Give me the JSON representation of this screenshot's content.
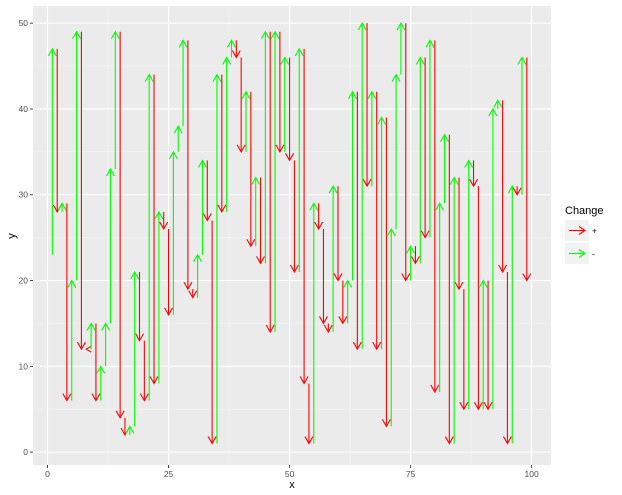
{
  "chart_data": {
    "type": "segment-arrows",
    "title": "",
    "xlabel": "x",
    "ylabel": "y",
    "xlim": [
      -3,
      104
    ],
    "ylim": [
      -1.5,
      52
    ],
    "x_ticks": [
      0,
      25,
      50,
      75,
      100
    ],
    "y_ticks": [
      0,
      10,
      20,
      30,
      40,
      50
    ],
    "grid": true,
    "legend": {
      "title": "Change",
      "position": "right",
      "entries": [
        {
          "label": "+",
          "color": "#ff0000"
        },
        {
          "label": "-",
          "color": "#00ff00"
        }
      ]
    },
    "arrows": [
      {
        "x": 1,
        "y_start": 23,
        "y_end": 47,
        "change": "-"
      },
      {
        "x": 2,
        "y_start": 47,
        "y_end": 28,
        "change": "+"
      },
      {
        "x": 3,
        "y_start": 28,
        "y_end": 29,
        "change": "-"
      },
      {
        "x": 4,
        "y_start": 29,
        "y_end": 6,
        "change": "+"
      },
      {
        "x": 5,
        "y_start": 6,
        "y_end": 20,
        "change": "-"
      },
      {
        "x": 6,
        "y_start": 20,
        "y_end": 49,
        "change": "-"
      },
      {
        "x": 7,
        "y_start": 49,
        "y_end": 12,
        "change": "+"
      },
      {
        "x": 8,
        "y_start": 12,
        "y_end": 12,
        "change": "+"
      },
      {
        "x": 9,
        "y_start": 12,
        "y_end": 15,
        "change": "-"
      },
      {
        "x": 10,
        "y_start": 15,
        "y_end": 6,
        "change": "+"
      },
      {
        "x": 11,
        "y_start": 6,
        "y_end": 10,
        "change": "-"
      },
      {
        "x": 12,
        "y_start": 10,
        "y_end": 15,
        "change": "-"
      },
      {
        "x": 13,
        "y_start": 15,
        "y_end": 33,
        "change": "-"
      },
      {
        "x": 14,
        "y_start": 33,
        "y_end": 49,
        "change": "-"
      },
      {
        "x": 15,
        "y_start": 49,
        "y_end": 4,
        "change": "+"
      },
      {
        "x": 16,
        "y_start": 4,
        "y_end": 2,
        "change": "+"
      },
      {
        "x": 17,
        "y_start": 2,
        "y_end": 3,
        "change": "-"
      },
      {
        "x": 18,
        "y_start": 3,
        "y_end": 21,
        "change": "-"
      },
      {
        "x": 19,
        "y_start": 21,
        "y_end": 13,
        "change": "+"
      },
      {
        "x": 20,
        "y_start": 13,
        "y_end": 6,
        "change": "+"
      },
      {
        "x": 21,
        "y_start": 6,
        "y_end": 44,
        "change": "-"
      },
      {
        "x": 22,
        "y_start": 44,
        "y_end": 8,
        "change": "+"
      },
      {
        "x": 23,
        "y_start": 8,
        "y_end": 28,
        "change": "-"
      },
      {
        "x": 24,
        "y_start": 28,
        "y_end": 26,
        "change": "+"
      },
      {
        "x": 25,
        "y_start": 26,
        "y_end": 16,
        "change": "+"
      },
      {
        "x": 26,
        "y_start": 16,
        "y_end": 35,
        "change": "-"
      },
      {
        "x": 27,
        "y_start": 35,
        "y_end": 38,
        "change": "-"
      },
      {
        "x": 28,
        "y_start": 38,
        "y_end": 48,
        "change": "-"
      },
      {
        "x": 29,
        "y_start": 48,
        "y_end": 19,
        "change": "+"
      },
      {
        "x": 30,
        "y_start": 19,
        "y_end": 18,
        "change": "+"
      },
      {
        "x": 31,
        "y_start": 18,
        "y_end": 23,
        "change": "-"
      },
      {
        "x": 32,
        "y_start": 23,
        "y_end": 34,
        "change": "-"
      },
      {
        "x": 33,
        "y_start": 34,
        "y_end": 27,
        "change": "+"
      },
      {
        "x": 34,
        "y_start": 27,
        "y_end": 1,
        "change": "+"
      },
      {
        "x": 35,
        "y_start": 1,
        "y_end": 44,
        "change": "-"
      },
      {
        "x": 36,
        "y_start": 44,
        "y_end": 28,
        "change": "+"
      },
      {
        "x": 37,
        "y_start": 28,
        "y_end": 46,
        "change": "-"
      },
      {
        "x": 38,
        "y_start": 46,
        "y_end": 48,
        "change": "-"
      },
      {
        "x": 39,
        "y_start": 48,
        "y_end": 46,
        "change": "+"
      },
      {
        "x": 40,
        "y_start": 46,
        "y_end": 35,
        "change": "+"
      },
      {
        "x": 41,
        "y_start": 35,
        "y_end": 42,
        "change": "-"
      },
      {
        "x": 42,
        "y_start": 42,
        "y_end": 24,
        "change": "+"
      },
      {
        "x": 43,
        "y_start": 24,
        "y_end": 32,
        "change": "-"
      },
      {
        "x": 44,
        "y_start": 32,
        "y_end": 22,
        "change": "+"
      },
      {
        "x": 45,
        "y_start": 22,
        "y_end": 49,
        "change": "-"
      },
      {
        "x": 46,
        "y_start": 49,
        "y_end": 14,
        "change": "+"
      },
      {
        "x": 47,
        "y_start": 14,
        "y_end": 49,
        "change": "-"
      },
      {
        "x": 48,
        "y_start": 49,
        "y_end": 35,
        "change": "+"
      },
      {
        "x": 49,
        "y_start": 35,
        "y_end": 46,
        "change": "-"
      },
      {
        "x": 50,
        "y_start": 46,
        "y_end": 34,
        "change": "+"
      },
      {
        "x": 51,
        "y_start": 34,
        "y_end": 21,
        "change": "+"
      },
      {
        "x": 52,
        "y_start": 21,
        "y_end": 47,
        "change": "-"
      },
      {
        "x": 53,
        "y_start": 47,
        "y_end": 8,
        "change": "+"
      },
      {
        "x": 54,
        "y_start": 8,
        "y_end": 1,
        "change": "+"
      },
      {
        "x": 55,
        "y_start": 1,
        "y_end": 29,
        "change": "-"
      },
      {
        "x": 56,
        "y_start": 29,
        "y_end": 26,
        "change": "+"
      },
      {
        "x": 57,
        "y_start": 26,
        "y_end": 15,
        "change": "+"
      },
      {
        "x": 58,
        "y_start": 15,
        "y_end": 14,
        "change": "+"
      },
      {
        "x": 59,
        "y_start": 14,
        "y_end": 31,
        "change": "-"
      },
      {
        "x": 60,
        "y_start": 31,
        "y_end": 20,
        "change": "+"
      },
      {
        "x": 61,
        "y_start": 20,
        "y_end": 15,
        "change": "+"
      },
      {
        "x": 62,
        "y_start": 15,
        "y_end": 20,
        "change": "-"
      },
      {
        "x": 63,
        "y_start": 20,
        "y_end": 42,
        "change": "-"
      },
      {
        "x": 64,
        "y_start": 42,
        "y_end": 12,
        "change": "+"
      },
      {
        "x": 65,
        "y_start": 12,
        "y_end": 50,
        "change": "-"
      },
      {
        "x": 66,
        "y_start": 50,
        "y_end": 31,
        "change": "+"
      },
      {
        "x": 67,
        "y_start": 31,
        "y_end": 42,
        "change": "-"
      },
      {
        "x": 68,
        "y_start": 42,
        "y_end": 12,
        "change": "+"
      },
      {
        "x": 69,
        "y_start": 12,
        "y_end": 39,
        "change": "-"
      },
      {
        "x": 70,
        "y_start": 39,
        "y_end": 3,
        "change": "+"
      },
      {
        "x": 71,
        "y_start": 3,
        "y_end": 26,
        "change": "-"
      },
      {
        "x": 72,
        "y_start": 26,
        "y_end": 44,
        "change": "-"
      },
      {
        "x": 73,
        "y_start": 44,
        "y_end": 50,
        "change": "-"
      },
      {
        "x": 74,
        "y_start": 50,
        "y_end": 20,
        "change": "+"
      },
      {
        "x": 75,
        "y_start": 20,
        "y_end": 24,
        "change": "-"
      },
      {
        "x": 76,
        "y_start": 24,
        "y_end": 22,
        "change": "+"
      },
      {
        "x": 77,
        "y_start": 22,
        "y_end": 46,
        "change": "-"
      },
      {
        "x": 78,
        "y_start": 46,
        "y_end": 25,
        "change": "+"
      },
      {
        "x": 79,
        "y_start": 25,
        "y_end": 48,
        "change": "-"
      },
      {
        "x": 80,
        "y_start": 48,
        "y_end": 7,
        "change": "+"
      },
      {
        "x": 81,
        "y_start": 7,
        "y_end": 29,
        "change": "-"
      },
      {
        "x": 82,
        "y_start": 29,
        "y_end": 37,
        "change": "-"
      },
      {
        "x": 83,
        "y_start": 37,
        "y_end": 1,
        "change": "+"
      },
      {
        "x": 84,
        "y_start": 1,
        "y_end": 32,
        "change": "-"
      },
      {
        "x": 85,
        "y_start": 32,
        "y_end": 19,
        "change": "+"
      },
      {
        "x": 86,
        "y_start": 19,
        "y_end": 5,
        "change": "+"
      },
      {
        "x": 87,
        "y_start": 5,
        "y_end": 34,
        "change": "-"
      },
      {
        "x": 88,
        "y_start": 34,
        "y_end": 31,
        "change": "+"
      },
      {
        "x": 89,
        "y_start": 31,
        "y_end": 5,
        "change": "+"
      },
      {
        "x": 90,
        "y_start": 5,
        "y_end": 20,
        "change": "-"
      },
      {
        "x": 91,
        "y_start": 20,
        "y_end": 5,
        "change": "+"
      },
      {
        "x": 92,
        "y_start": 5,
        "y_end": 40,
        "change": "-"
      },
      {
        "x": 93,
        "y_start": 40,
        "y_end": 41,
        "change": "-"
      },
      {
        "x": 94,
        "y_start": 41,
        "y_end": 21,
        "change": "+"
      },
      {
        "x": 95,
        "y_start": 21,
        "y_end": 1,
        "change": "+"
      },
      {
        "x": 96,
        "y_start": 1,
        "y_end": 31,
        "change": "-"
      },
      {
        "x": 97,
        "y_start": 31,
        "y_end": 30,
        "change": "+"
      },
      {
        "x": 98,
        "y_start": 30,
        "y_end": 46,
        "change": "-"
      },
      {
        "x": 99,
        "y_start": 46,
        "y_end": 20,
        "change": "+"
      }
    ]
  }
}
